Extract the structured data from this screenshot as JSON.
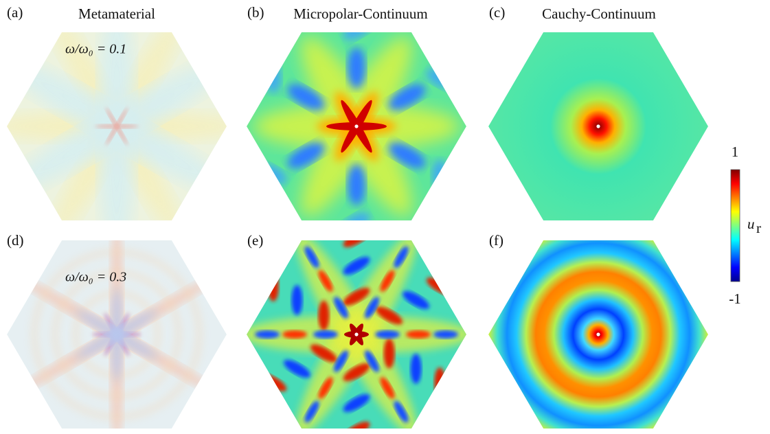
{
  "panels": [
    {
      "label": "(a)",
      "title": "Metamaterial",
      "frequency": "ω/ω₀ = 0.1"
    },
    {
      "label": "(b)",
      "title": "Micropolar-Continuum"
    },
    {
      "label": "(c)",
      "title": "Cauchy-Continuum"
    },
    {
      "label": "(d)",
      "frequency": "ω/ω₀ = 0.3"
    },
    {
      "label": "(e)"
    },
    {
      "label": "(f)"
    }
  ],
  "colorbar": {
    "max": "1",
    "min": "-1",
    "symbol": "u",
    "subscript": "r"
  }
}
